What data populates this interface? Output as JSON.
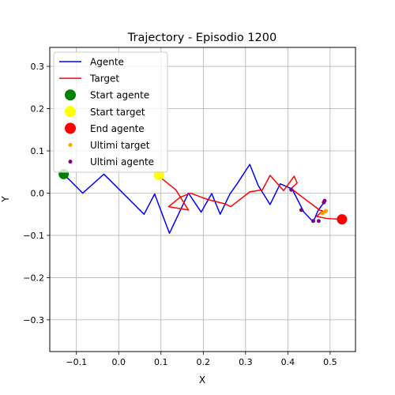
{
  "chart_data": {
    "type": "line",
    "title": "Trajectory - Episodio 1200",
    "xlabel": "X",
    "ylabel": "Y",
    "xlim": [
      -0.163,
      0.56
    ],
    "ylim": [
      -0.375,
      0.345
    ],
    "xticks": [
      -0.1,
      0.0,
      0.1,
      0.2,
      0.3,
      0.4,
      0.5
    ],
    "xtick_labels": [
      "−0.1",
      "0.0",
      "0.1",
      "0.2",
      "0.3",
      "0.4",
      "0.5"
    ],
    "yticks": [
      0.3,
      0.2,
      0.1,
      0.0,
      -0.1,
      -0.2,
      -0.3
    ],
    "ytick_labels": [
      "0.3",
      "0.2",
      "0.1",
      "0.0",
      "−0.1",
      "−0.2",
      "−0.3"
    ],
    "grid": true,
    "legend_position": "top-left",
    "series": [
      {
        "name": "Agente",
        "kind": "line",
        "color": "#0000ff",
        "x": [
          -0.13,
          -0.085,
          -0.035,
          0.06,
          0.085,
          0.12,
          0.165,
          0.195,
          0.22,
          0.24,
          0.263,
          0.28,
          0.31,
          0.33,
          0.358,
          0.382,
          0.41,
          0.438,
          0.46,
          0.472,
          0.487
        ],
        "y": [
          0.045,
          0.0,
          0.045,
          -0.05,
          -0.002,
          -0.095,
          0.0,
          -0.045,
          -0.001,
          -0.05,
          -0.002,
          0.022,
          0.068,
          0.018,
          -0.027,
          0.022,
          0.01,
          -0.045,
          -0.068,
          -0.04,
          -0.02
        ]
      },
      {
        "name": "Target",
        "kind": "line",
        "color": "#ff0000",
        "x": [
          0.095,
          0.135,
          0.165,
          0.118,
          0.145,
          0.17,
          0.21,
          0.25,
          0.265,
          0.31,
          0.34,
          0.358,
          0.39,
          0.415,
          0.422,
          0.408,
          0.422,
          0.475,
          0.482,
          0.468,
          0.492,
          0.528
        ],
        "y": [
          0.04,
          0.008,
          -0.04,
          -0.032,
          -0.01,
          0.0,
          -0.015,
          -0.025,
          -0.032,
          0.003,
          0.008,
          0.042,
          0.006,
          0.04,
          0.024,
          0.011,
          0.0,
          -0.04,
          -0.042,
          -0.055,
          -0.06,
          -0.062
        ]
      },
      {
        "name": "Start agente",
        "kind": "marker",
        "color": "#008000",
        "x": [
          -0.13
        ],
        "y": [
          0.045
        ]
      },
      {
        "name": "Start target",
        "kind": "marker",
        "color": "#ffff00",
        "x": [
          0.095
        ],
        "y": [
          0.043
        ]
      },
      {
        "name": "End agente",
        "kind": "marker",
        "color": "#ff0000",
        "x": [
          0.528
        ],
        "y": [
          -0.062
        ]
      },
      {
        "name": "Ultimi target",
        "kind": "scatter",
        "color": "#ffa500",
        "x": [
          0.482,
          0.488,
          0.49
        ],
        "y": [
          -0.048,
          -0.044,
          -0.042
        ]
      },
      {
        "name": "Ultimi agente",
        "kind": "scatter",
        "color": "#800080",
        "x": [
          0.408,
          0.432,
          0.46,
          0.473,
          0.485,
          0.487
        ],
        "y": [
          0.008,
          -0.04,
          -0.066,
          -0.066,
          -0.022,
          -0.018
        ]
      }
    ]
  }
}
